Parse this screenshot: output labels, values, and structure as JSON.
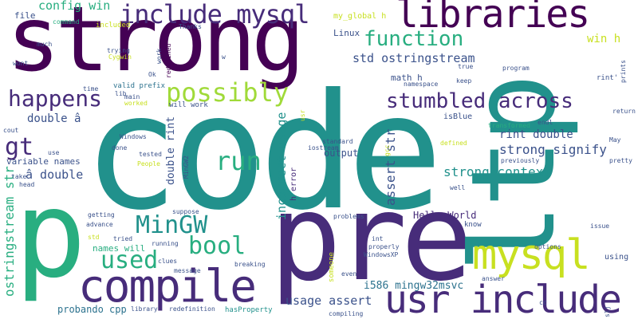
{
  "palette": [
    "#440154",
    "#472c7a",
    "#3b528b",
    "#2c728e",
    "#21918c",
    "#28ae80",
    "#5ec962",
    "#addc30",
    "#c8e020",
    "#a0da39"
  ],
  "words": {
    "code": "code",
    "strong": "strong",
    "pre": "pre",
    "p": "p",
    "ltp": "ltp",
    "compile": "compile",
    "usr_include": "usr include",
    "mysql": "mysql",
    "libraries": "libraries",
    "include_mysql": "include mysql",
    "happens": "happens",
    "possibly": "possibly",
    "function": "function",
    "stumbled_across": "stumbled across",
    "std_ostringstream": "std ostringstream",
    "config_win": "config win",
    "used": "used",
    "bool": "bool",
    "MinGW": "MinGW",
    "run": "run",
    "gt": "gt",
    "strong_signify": "strong signify",
    "strong_context": "strong context",
    "rint_double": "rint double",
    "usage_assert": "usage assert",
    "i586_mingw32msvc": "i586 mingw32msvc",
    "Hello_World": "Hello World",
    "incorrect_usage": "incorrect usage",
    "ostringstream_str": "ostringstream str",
    "assert_str": "assert str",
    "double_rint": "double rint",
    "double_a": "double â",
    "a_double": "â double",
    "win_h": "win h",
    "math_h": "math h",
    "output": "output",
    "probando_cpp": "probando cpp",
    "variable_names": "variable names",
    "names_will": "names will",
    "my_global_h": "my_global h",
    "Linux": "Linux",
    "file": "file",
    "command": "command",
    "included": "included",
    "Thanks": "Thanks",
    "much": "much",
    "trying": "trying",
    "Cygwin": "Cygwin",
    "wont": "wont",
    "time": "time",
    "lib": "lib",
    "main": "main",
    "valid_prefix": "valid prefix",
    "worked": "worked",
    "will_work": "will work",
    "Ok": "Ok",
    "redefined": "redefined",
    "work": "work",
    "w": "w",
    "program": "program",
    "true": "true",
    "keep": "keep",
    "namespace": "namespace",
    "isBlue": "isBlue",
    "endl": "endl",
    "transformed": "transformed",
    "May": "May",
    "previously": "previously",
    "pretty": "pretty",
    "cout": "cout",
    "Windows": "Windows",
    "done": "done",
    "tested": "tested",
    "People": "People",
    "use": "use",
    "iostream": "iostream",
    "standard": "standard",
    "defined": "defined",
    "take": "take",
    "head": "head",
    "well": "well",
    "h_error": "h error",
    "getting": "getting",
    "advance": "advance",
    "std": "std",
    "tried": "tried",
    "suppose": "suppose",
    "running": "running",
    "clues": "clues",
    "message": "message",
    "breaking": "breaking",
    "problems": "problems",
    "know": "know",
    "int": "int",
    "properly": "properly",
    "WindowsXP": "WindowsXP",
    "even": "even",
    "options": "options",
    "issue": "issue",
    "using": "using",
    "answer": "answer",
    "cc": "cc",
    "library": "library",
    "redefinition": "redefinition",
    "hasProperty": "hasProperty",
    "compiling": "compiling",
    "rint_": "rint'",
    "return": "return",
    "prints": "prints",
    "someone": "someone",
    "MinGW2": "MinGW2",
    "gcc": "gcc",
    "usr": "usr",
    "slj": "slj"
  }
}
